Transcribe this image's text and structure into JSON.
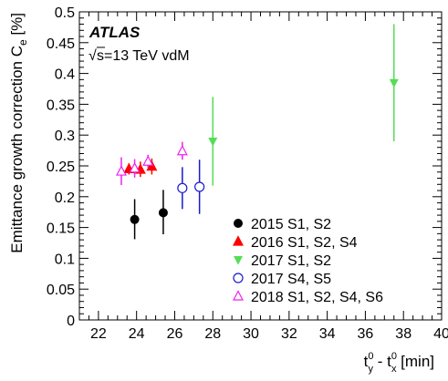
{
  "chart_data": {
    "type": "scatter",
    "title": "",
    "xlabel": {
      "main": "t",
      "sup1": "0",
      "sub1": "y",
      "middle": " - t",
      "sup2": "0",
      "sub2": "x",
      "unit": " [min]"
    },
    "ylabel": {
      "main": "Emittance growth correction C",
      "sub": "e",
      "unit": " [%]"
    },
    "xlim": [
      21,
      40
    ],
    "ylim": [
      0,
      0.5
    ],
    "xticks": [
      "22",
      "24",
      "26",
      "28",
      "30",
      "32",
      "34",
      "36",
      "38",
      "40"
    ],
    "yticks": [
      "0",
      "0.05",
      "0.1",
      "0.15",
      "0.2",
      "0.25",
      "0.3",
      "0.35",
      "0.4",
      "0.45",
      "0.5"
    ],
    "annotations": {
      "experiment": "ATLAS",
      "energy": "s=13 TeV vdM",
      "sqrt_symbol": "√"
    },
    "legend_position": "bottom-right",
    "series": [
      {
        "name": "2015 S1, S2",
        "marker": "filled-circle",
        "color": "#000000",
        "points": [
          {
            "x": 23.9,
            "y": 0.163,
            "ylo": 0.131,
            "yhi": 0.196
          },
          {
            "x": 25.4,
            "y": 0.174,
            "ylo": 0.139,
            "yhi": 0.211
          }
        ]
      },
      {
        "name": "2016 S1, S2, S4",
        "marker": "filled-triangle-up",
        "color": "#ff0000",
        "points": [
          {
            "x": 23.6,
            "y": 0.245,
            "ylo": 0.236,
            "yhi": 0.254
          },
          {
            "x": 24.2,
            "y": 0.244,
            "ylo": 0.232,
            "yhi": 0.257
          },
          {
            "x": 24.8,
            "y": 0.249,
            "ylo": 0.236,
            "yhi": 0.262
          }
        ]
      },
      {
        "name": "2017 S1, S2",
        "marker": "filled-triangle-down",
        "color": "#55dd55",
        "points": [
          {
            "x": 28.0,
            "y": 0.29,
            "ylo": 0.218,
            "yhi": 0.362
          },
          {
            "x": 37.5,
            "y": 0.385,
            "ylo": 0.29,
            "yhi": 0.48
          }
        ]
      },
      {
        "name": "2017 S4, S5",
        "marker": "open-circle",
        "color": "#1a1acc",
        "points": [
          {
            "x": 26.4,
            "y": 0.214,
            "ylo": 0.18,
            "yhi": 0.248
          },
          {
            "x": 27.3,
            "y": 0.216,
            "ylo": 0.172,
            "yhi": 0.26
          }
        ]
      },
      {
        "name": "2018 S1, S2, S4, S6",
        "marker": "open-triangle-up",
        "color": "#ee22ee",
        "points": [
          {
            "x": 23.2,
            "y": 0.241,
            "ylo": 0.219,
            "yhi": 0.264
          },
          {
            "x": 23.9,
            "y": 0.246,
            "ylo": 0.231,
            "yhi": 0.261
          },
          {
            "x": 24.6,
            "y": 0.257,
            "ylo": 0.247,
            "yhi": 0.268
          },
          {
            "x": 26.4,
            "y": 0.274,
            "ylo": 0.26,
            "yhi": 0.289
          }
        ]
      }
    ]
  }
}
